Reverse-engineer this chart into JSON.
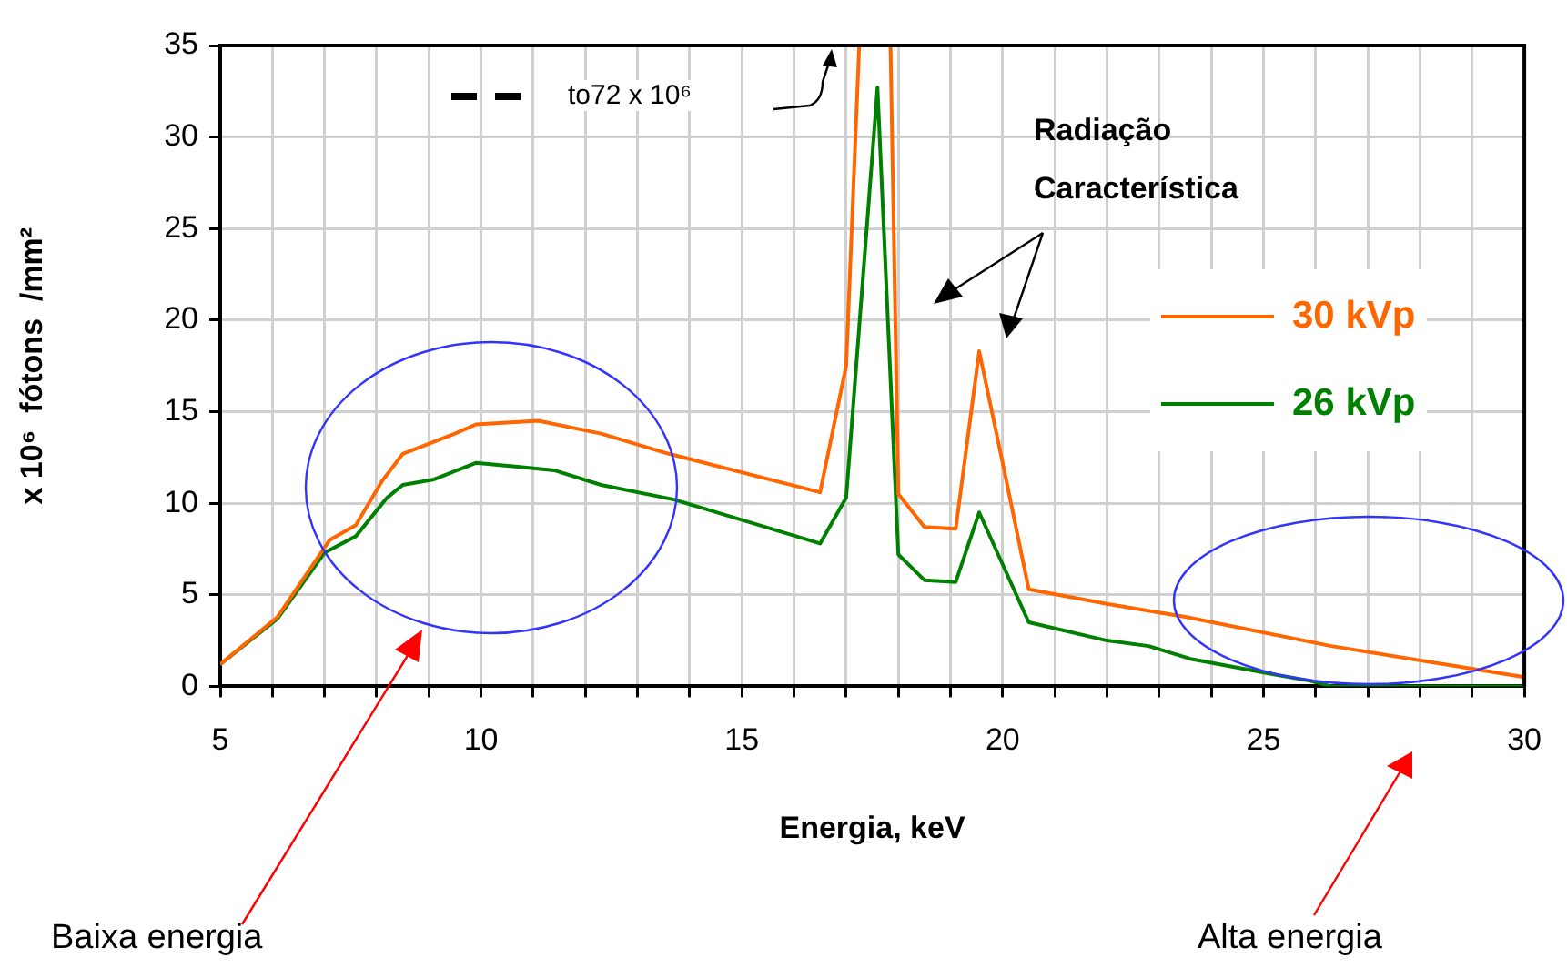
{
  "chart_data": {
    "type": "line",
    "xlabel": "Energia, keV",
    "ylabel": "x 10⁶  fótons  /mm²",
    "xlim": [
      5,
      30
    ],
    "ylim": [
      0,
      35
    ],
    "xticks": [
      5,
      {
        "value": 6,
        "label": null
      },
      {
        "value": 7,
        "label": null
      },
      {
        "value": 8,
        "label": null
      },
      {
        "value": 9,
        "label": null
      },
      10,
      {
        "value": 11,
        "label": null
      },
      {
        "value": 12,
        "label": null
      },
      {
        "value": 13,
        "label": null
      },
      {
        "value": 14,
        "label": null
      },
      15,
      {
        "value": 16,
        "label": null
      },
      {
        "value": 17,
        "label": null
      },
      {
        "value": 18,
        "label": null
      },
      {
        "value": 19,
        "label": null
      },
      20,
      {
        "value": 21,
        "label": null
      },
      {
        "value": 22,
        "label": null
      },
      {
        "value": 23,
        "label": null
      },
      {
        "value": 24,
        "label": null
      },
      25,
      {
        "value": 26,
        "label": null
      },
      {
        "value": 27,
        "label": null
      },
      {
        "value": 28,
        "label": null
      },
      {
        "value": 29,
        "label": null
      },
      30
    ],
    "yticks": [
      0,
      5,
      10,
      15,
      20,
      25,
      30,
      35
    ],
    "grid": true,
    "legend": "right",
    "marker": "none",
    "line_style": "solid",
    "series": [
      {
        "name": "30 kVp",
        "color": "#ff6600",
        "x": [
          5,
          6.1,
          7.1,
          7.6,
          8.1,
          8.5,
          9.5,
          9.9,
          11.1,
          12.3,
          13.6,
          16.5,
          17,
          17.25,
          17.5,
          17.85,
          18,
          18.5,
          19.1,
          19.55,
          20,
          20.5,
          22,
          23.5,
          26.3,
          30
        ],
        "values": [
          1.2,
          3.8,
          8,
          8.8,
          11.2,
          12.7,
          13.8,
          14.3,
          14.5,
          13.8,
          12.7,
          10.6,
          17.5,
          35,
          null,
          35,
          10.5,
          8.7,
          8.6,
          18.3,
          12.2,
          5.3,
          4.5,
          3.8,
          2.2,
          0.5
        ]
      },
      {
        "name": "26 kVp",
        "color": "#008000",
        "x": [
          5,
          6.1,
          7,
          7.6,
          8.2,
          8.5,
          9.1,
          9.9,
          10.7,
          11.4,
          12.3,
          13.7,
          16.5,
          17,
          17.6,
          18,
          18.5,
          19.1,
          19.55,
          20.5,
          22,
          22.8,
          23.6,
          25.1,
          25.9,
          26.3,
          30
        ],
        "values": [
          1.2,
          3.7,
          7.3,
          8.2,
          10.3,
          11,
          11.3,
          12.2,
          12,
          11.8,
          11,
          10.2,
          7.8,
          10.3,
          32.7,
          7.2,
          5.8,
          5.7,
          9.5,
          3.5,
          2.5,
          2.2,
          1.5,
          0.7,
          0.3,
          0,
          0
        ]
      }
    ],
    "annotations": [
      "to72 x 10⁶",
      "Radiação Característica",
      "Baixa energia",
      "Alta energia"
    ]
  }
}
